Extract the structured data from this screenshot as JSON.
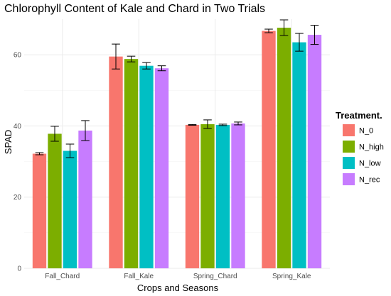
{
  "chart_data": {
    "type": "bar",
    "title": "Chlorophyll Content of Kale and Chard in Two Trials",
    "xlabel": "Crops and Seasons",
    "ylabel": "SPAD",
    "ylim": [
      0,
      70
    ],
    "yticks": [
      0,
      20,
      40,
      60
    ],
    "grid": true,
    "legend_position": "right",
    "legend_title": "Treatment.",
    "categories": [
      "Fall_Chard",
      "Fall_Kale",
      "Spring_Chard",
      "Spring_Kale"
    ],
    "series": [
      {
        "name": "N_0",
        "color": "#F8766D",
        "values": [
          32.2,
          59.5,
          40.3,
          66.7
        ],
        "errors": [
          0.3,
          3.5,
          0.1,
          0.5
        ]
      },
      {
        "name": "N_high",
        "color": "#7CAE00",
        "values": [
          37.8,
          58.8,
          40.5,
          67.6
        ],
        "errors": [
          2.1,
          0.8,
          1.2,
          2.2
        ]
      },
      {
        "name": "N_low",
        "color": "#00BFC4",
        "values": [
          33.0,
          56.9,
          40.3,
          63.5
        ],
        "errors": [
          1.9,
          0.9,
          0.2,
          2.5
        ]
      },
      {
        "name": "N_rec",
        "color": "#C77CFF",
        "values": [
          38.7,
          56.2,
          40.7,
          65.6
        ],
        "errors": [
          2.8,
          0.7,
          0.4,
          2.7
        ]
      }
    ]
  }
}
